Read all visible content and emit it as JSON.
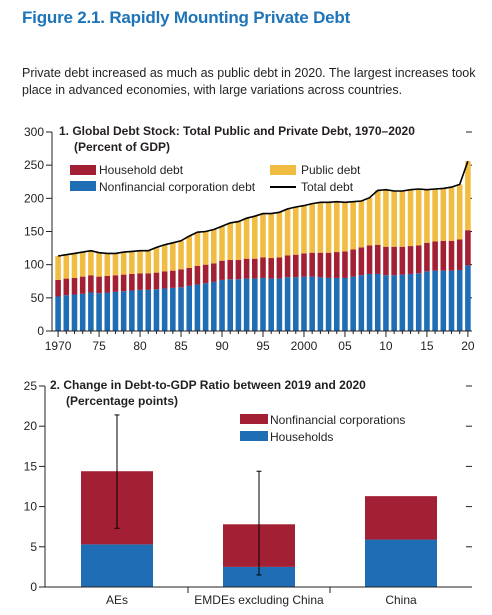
{
  "figure": {
    "title": "Figure 2.1.  Rapidly Mounting Private Debt",
    "subtitle": "Private debt increased as much as public debt in 2020. The largest increases took place in advanced economies, with large variations across countries."
  },
  "colors": {
    "household": "#a31f34",
    "public": "#f0bc42",
    "nfc": "#1f6eb5",
    "total": "#000000",
    "axis": "#231f20"
  },
  "chart_data": [
    {
      "type": "bar",
      "stacked": true,
      "title": "1. Global Debt Stock: Total Public and Private Debt, 1970–2020",
      "subtitle": "(Percent of GDP)",
      "ylim": [
        0,
        300
      ],
      "yticks": [
        0,
        50,
        100,
        150,
        200,
        250,
        300
      ],
      "x": [
        1970,
        1971,
        1972,
        1973,
        1974,
        1975,
        1976,
        1977,
        1978,
        1979,
        1980,
        1981,
        1982,
        1983,
        1984,
        1985,
        1986,
        1987,
        1988,
        1989,
        1990,
        1991,
        1992,
        1993,
        1994,
        1995,
        1996,
        1997,
        1998,
        1999,
        2000,
        2001,
        2002,
        2003,
        2004,
        2005,
        2006,
        2007,
        2008,
        2009,
        2010,
        2011,
        2012,
        2013,
        2014,
        2015,
        2016,
        2017,
        2018,
        2019,
        2020
      ],
      "xtick_labels": [
        {
          "x": 1970,
          "label": "1970"
        },
        {
          "x": 1975,
          "label": "75"
        },
        {
          "x": 1980,
          "label": "80"
        },
        {
          "x": 1985,
          "label": "85"
        },
        {
          "x": 1990,
          "label": "90"
        },
        {
          "x": 1995,
          "label": "95"
        },
        {
          "x": 2000,
          "label": "2000"
        },
        {
          "x": 2005,
          "label": "05"
        },
        {
          "x": 2010,
          "label": "10"
        },
        {
          "x": 2015,
          "label": "15"
        },
        {
          "x": 2020,
          "label": "20"
        }
      ],
      "legend": [
        "Household debt",
        "Public debt",
        "Nonfinancial corporation debt",
        "Total debt"
      ],
      "series": [
        {
          "name": "Nonfinancial corporation debt",
          "values": [
            52,
            54,
            55,
            56,
            58,
            57,
            58,
            59,
            60,
            61,
            62,
            62,
            63,
            64,
            65,
            66,
            68,
            70,
            72,
            74,
            77,
            78,
            78,
            79,
            79,
            80,
            79,
            79,
            81,
            81,
            82,
            82,
            81,
            80,
            80,
            80,
            82,
            84,
            86,
            86,
            84,
            84,
            85,
            86,
            87,
            90,
            91,
            91,
            91,
            92,
            99
          ]
        },
        {
          "name": "Household debt",
          "values": [
            25,
            25,
            25,
            26,
            26,
            25,
            25,
            25,
            25,
            25,
            25,
            25,
            25,
            26,
            26,
            27,
            27,
            28,
            28,
            28,
            29,
            29,
            29,
            30,
            30,
            31,
            31,
            32,
            33,
            34,
            35,
            36,
            37,
            38,
            39,
            40,
            41,
            42,
            43,
            44,
            43,
            43,
            42,
            42,
            42,
            43,
            44,
            45,
            45,
            46,
            53
          ]
        },
        {
          "name": "Public debt",
          "values": [
            36,
            36,
            37,
            37,
            37,
            36,
            34,
            33,
            34,
            34,
            34,
            34,
            38,
            40,
            42,
            43,
            48,
            51,
            50,
            51,
            52,
            56,
            58,
            61,
            64,
            66,
            67,
            68,
            70,
            72,
            72,
            74,
            76,
            76,
            76,
            74,
            72,
            70,
            72,
            82,
            86,
            84,
            84,
            85,
            85,
            80,
            79,
            79,
            81,
            83,
            104
          ]
        }
      ],
      "total_debt": [
        113,
        115,
        117,
        119,
        121,
        118,
        117,
        117,
        119,
        120,
        121,
        121,
        126,
        130,
        133,
        136,
        143,
        149,
        150,
        153,
        158,
        163,
        165,
        170,
        173,
        177,
        177,
        179,
        184,
        187,
        189,
        192,
        194,
        194,
        195,
        194,
        195,
        196,
        201,
        212,
        213,
        211,
        211,
        213,
        214,
        213,
        214,
        215,
        217,
        221,
        256
      ]
    },
    {
      "type": "bar",
      "stacked": true,
      "title": "2. Change in Debt-to-GDP Ratio between 2019 and 2020",
      "subtitle": "(Percentage points)",
      "ylim": [
        0,
        25
      ],
      "yticks": [
        0,
        5,
        10,
        15,
        20,
        25
      ],
      "categories": [
        "AEs",
        "EMDEs excluding China",
        "China"
      ],
      "legend": [
        "Nonfinancial corporations",
        "Households"
      ],
      "series": [
        {
          "name": "Households",
          "values": [
            5.3,
            2.5,
            5.9
          ]
        },
        {
          "name": "Nonfinancial corporations",
          "values": [
            9.1,
            5.3,
            5.4
          ]
        }
      ],
      "error_bars": [
        {
          "category": "AEs",
          "low": 7.3,
          "high": 21.4
        },
        {
          "category": "EMDEs excluding China",
          "low": 1.5,
          "high": 14.4
        }
      ]
    }
  ]
}
